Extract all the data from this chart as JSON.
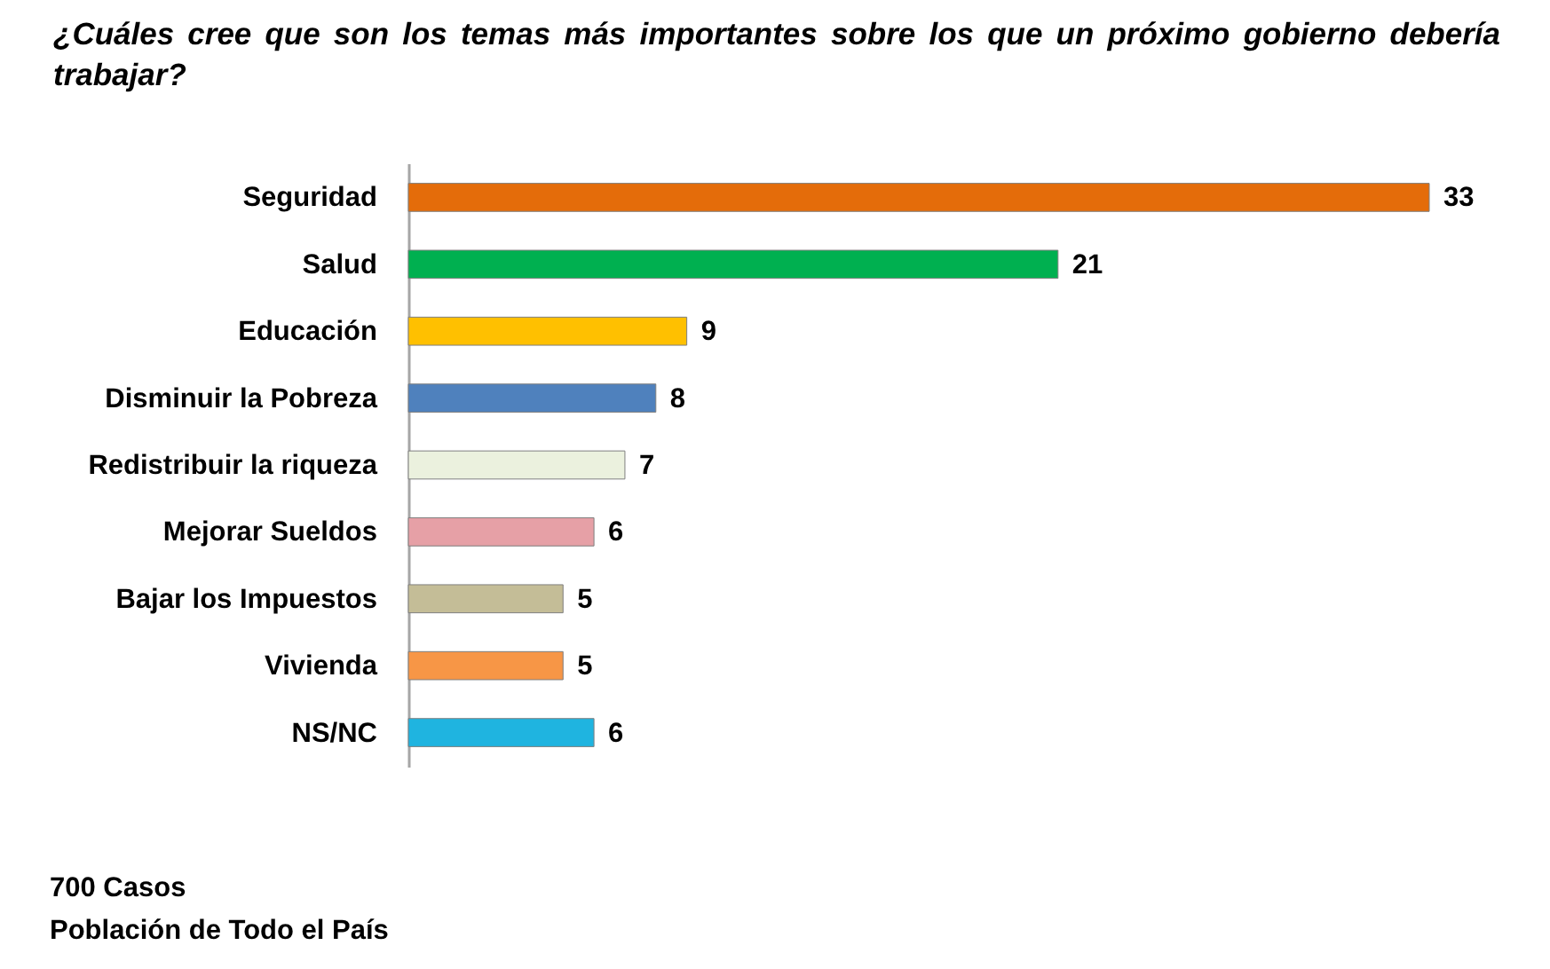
{
  "chart_data": {
    "type": "bar",
    "orientation": "horizontal",
    "title": "¿Cuáles cree que son los temas más importantes sobre los que un próximo gobierno debería trabajar?",
    "categories": [
      "Seguridad",
      "Salud",
      "Educación",
      "Disminuir la Pobreza",
      "Redistribuir la riqueza",
      "Mejorar Sueldos",
      "Bajar los Impuestos",
      "Vivienda",
      "NS/NC"
    ],
    "values": [
      33,
      21,
      9,
      8,
      7,
      6,
      5,
      5,
      6
    ],
    "colors": [
      "#e46c0a",
      "#00b050",
      "#ffc000",
      "#4f81bd",
      "#ebf1de",
      "#e6a0a6",
      "#c4bd97",
      "#f79646",
      "#1fb4e0"
    ],
    "data_labels": true,
    "legend": false,
    "tick_labels": "y",
    "annotations": [
      "700 Casos",
      "Población de Todo el País"
    ]
  }
}
